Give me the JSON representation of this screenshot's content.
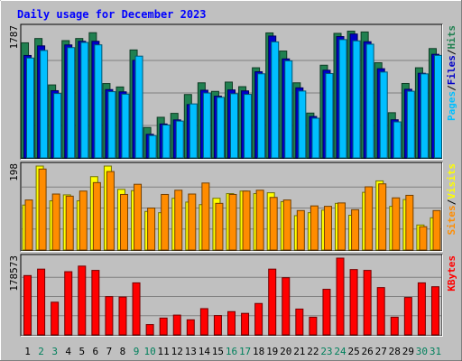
{
  "chart_data": {
    "type": "bar",
    "title": "Daily usage for December 2023",
    "categories": [
      "1",
      "2",
      "3",
      "4",
      "5",
      "6",
      "7",
      "8",
      "9",
      "10",
      "11",
      "12",
      "13",
      "14",
      "15",
      "16",
      "17",
      "18",
      "19",
      "20",
      "21",
      "22",
      "23",
      "24",
      "25",
      "26",
      "27",
      "28",
      "29",
      "30",
      "31"
    ],
    "weekend_days": [
      "2",
      "3",
      "9",
      "10",
      "16",
      "17",
      "23",
      "24",
      "30",
      "31"
    ],
    "panels": [
      {
        "id": "hits_files_pages",
        "scale_label": "1787",
        "ylim": [
          0,
          1787
        ],
        "side_label_parts": [
          "Pages",
          "/",
          "Files",
          "/",
          "Hits"
        ],
        "series": [
          {
            "name": "Hits",
            "color": "#208050",
            "values": [
              1583,
              1642,
              1004,
              1613,
              1642,
              1722,
              1023,
              976,
              1485,
              419,
              559,
              613,
              872,
              1033,
              915,
              1043,
              980,
              1240,
              1719,
              1470,
              1033,
              617,
              1275,
              1713,
              1743,
              1732,
              1309,
              622,
              1024,
              1240,
              1504
            ]
          },
          {
            "name": "Files",
            "color": "#0000c8",
            "values": [
              1409,
              1541,
              925,
              1554,
              1604,
              1604,
              940,
              909,
              1342,
              325,
              467,
              523,
              734,
              931,
              849,
              935,
              922,
              1185,
              1676,
              1362,
              964,
              570,
              1206,
              1669,
              1704,
              1598,
              1227,
              525,
              944,
              1164,
              1425
            ]
          },
          {
            "name": "Pages",
            "color": "#00bfff",
            "values": [
              1374,
              1478,
              886,
              1517,
              1588,
              1555,
              911,
              877,
              1400,
              308,
              453,
              507,
              743,
              893,
              833,
              883,
              874,
              1157,
              1596,
              1335,
              920,
              546,
              1160,
              1627,
              1610,
              1564,
              1181,
              496,
              917,
              1156,
              1410
            ]
          }
        ]
      },
      {
        "id": "visits_sites",
        "scale_label": "198",
        "ylim": [
          0,
          198
        ],
        "side_label_parts": [
          "Sites",
          "/",
          "Visits"
        ],
        "series": [
          {
            "name": "Visits",
            "color": "#ffff00",
            "values": [
              106,
              198,
              116,
              130,
              116,
              173,
              198,
              143,
              140,
              91,
              88,
              122,
              113,
              107,
              122,
              133,
              139,
              133,
              135,
              114,
              81,
              88,
              94,
              110,
              82,
              136,
              163,
              103,
              119,
              59,
              76
            ]
          },
          {
            "name": "Sites",
            "color": "#ff8c00",
            "values": [
              118,
              191,
              132,
              127,
              139,
              159,
              185,
              131,
              155,
              99,
              131,
              141,
              132,
              158,
              110,
              131,
              139,
              141,
              124,
              118,
              93,
              104,
              103,
              111,
              95,
              149,
              156,
              123,
              129,
              55,
              93
            ]
          }
        ]
      },
      {
        "id": "kbytes",
        "scale_label": "178573",
        "ylim": [
          0,
          178573
        ],
        "side_label_parts": [
          "KBytes"
        ],
        "series": [
          {
            "name": "KBytes",
            "color": "#ff0000",
            "values": [
              138000,
              153000,
              76000,
              147000,
              160000,
              150000,
              89000,
              88000,
              121000,
              24000,
              39000,
              46000,
              35000,
              61000,
              45000,
              54000,
              50000,
              73000,
              153000,
              133000,
              60000,
              41000,
              106000,
              178573,
              152000,
              150000,
              110000,
              41000,
              87000,
              121000,
              112000
            ]
          }
        ]
      }
    ]
  },
  "colors": {
    "background": "#c0c0c0",
    "title": "#0000ff",
    "label_weekday": "#000000",
    "label_weekend": "#00805c",
    "scale_label": "#000000",
    "gridline": "#808080"
  }
}
